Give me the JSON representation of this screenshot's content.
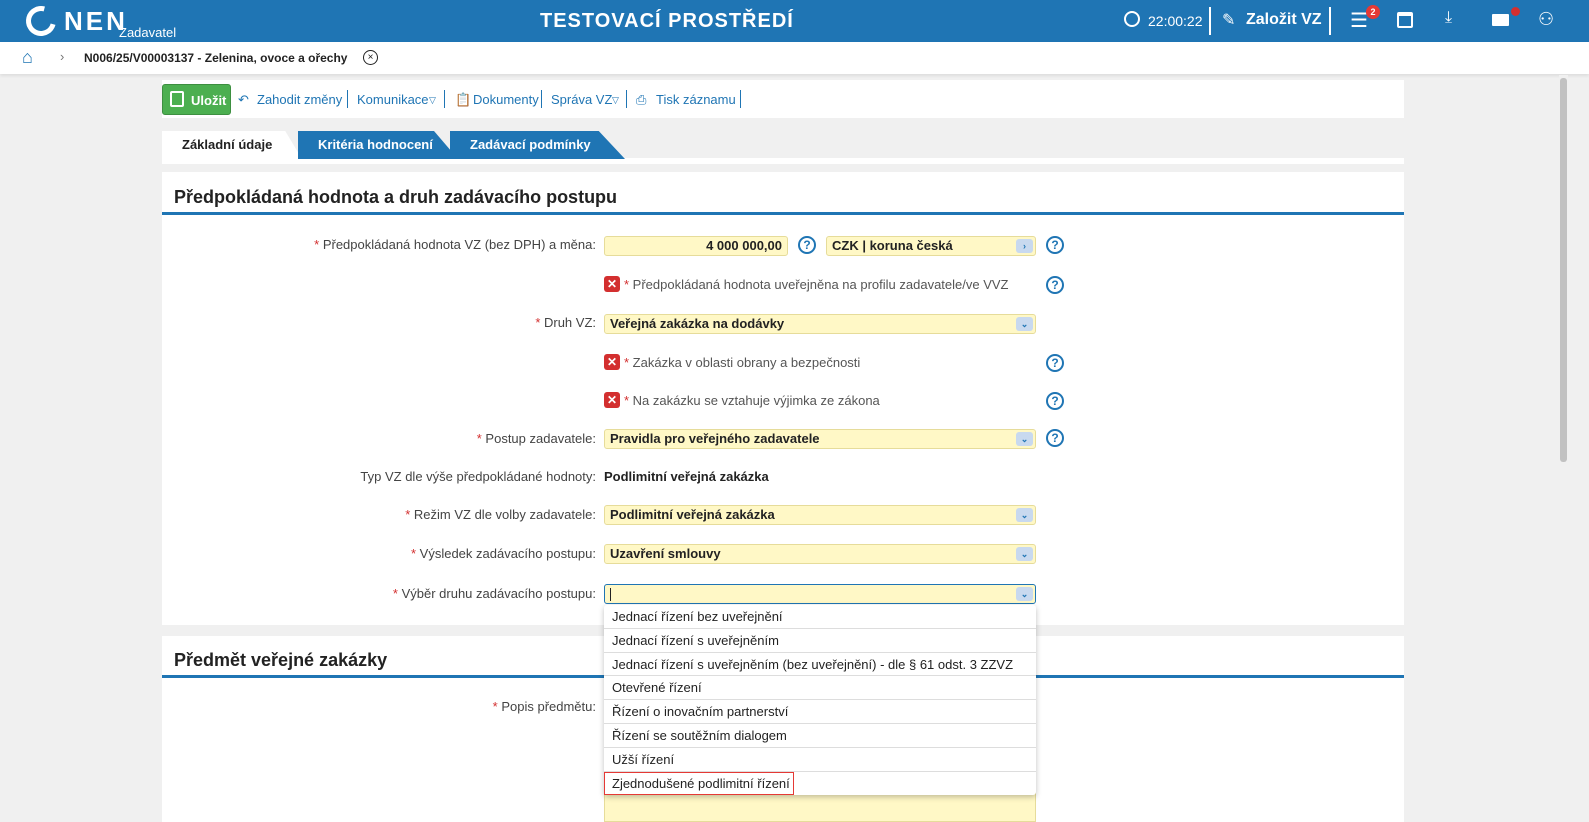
{
  "header": {
    "logo": "NEN",
    "logo_sub": "Zadavatel",
    "title": "TESTOVACÍ PROSTŘEDÍ",
    "time": "22:00:22",
    "create_label": "Založit VZ",
    "menu_badge": "2",
    "accent": "#1f75b4"
  },
  "breadcrumb": {
    "item": "N006/25/V00003137 - Zelenina, ovoce a ořechy"
  },
  "toolbar": {
    "save": "Uložit",
    "discard": "Zahodit změny",
    "communication": "Komunikace",
    "documents": "Dokumenty",
    "manage": "Správa VZ",
    "print": "Tisk záznamu"
  },
  "tabs": [
    "Základní údaje",
    "Kritéria hodnocení",
    "Zadávací podmínky"
  ],
  "section1": {
    "title": "Předpokládaná hodnota a druh zadávacího postupu",
    "value_label": "Předpokládaná hodnota VZ (bez DPH) a měna:",
    "value": "4 000 000,00",
    "currency": "CZK | koruna česká",
    "published_label": "Předpokládaná hodnota uveřejněna na profilu zadavatele/ve VVZ",
    "type_label": "Druh VZ:",
    "type": "Veřejná zakázka na dodávky",
    "defense_label": "Zakázka v oblasti obrany a bezpečnosti",
    "exception_label": "Na zakázku se vztahuje výjimka ze zákona",
    "procedure_label": "Postup zadavatele:",
    "procedure": "Pravidla pro veřejného zadavatele",
    "typ_label": "Typ VZ dle výše předpokládané hodnoty:",
    "typ": "Podlimitní veřejná zakázka",
    "mode_label": "Režim VZ dle volby zadavatele:",
    "mode": "Podlimitní veřejná zakázka",
    "result_label": "Výsledek zadávacího postupu:",
    "result": "Uzavření smlouvy",
    "choice_label": "Výběr druhu zadávacího postupu:",
    "choice": ""
  },
  "dropdown_options": [
    "Jednací řízení bez uveřejnění",
    "Jednací řízení s uveřejněním",
    "Jednací řízení s uveřejněním (bez uveřejnění) - dle § 61 odst. 3 ZZVZ",
    "Otevřené řízení",
    "Řízení o inovačním partnerství",
    "Řízení se soutěžním dialogem",
    "Užší řízení",
    "Zjednodušené podlimitní řízení"
  ],
  "section2": {
    "title": "Předmět veřejné zakázky",
    "desc_label": "Popis předmětu:"
  }
}
